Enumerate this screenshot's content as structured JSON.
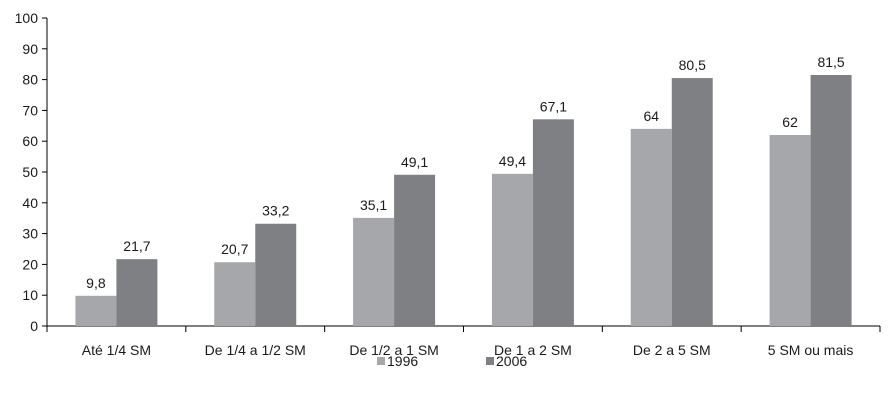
{
  "chart_data": {
    "type": "bar",
    "title": "",
    "xlabel": "",
    "ylabel": "",
    "ylim": [
      0,
      100
    ],
    "yticks": [
      0,
      10,
      20,
      30,
      40,
      50,
      60,
      70,
      80,
      90,
      100
    ],
    "categories": [
      "Até 1/4 SM",
      "De 1/4 a 1/2 SM",
      "De 1/2 a 1 SM",
      "De 1 a 2 SM",
      "De 2 a 5 SM",
      "5 SM ou mais"
    ],
    "series": [
      {
        "name": "1996",
        "color": "#a6a7aa",
        "values": [
          9.8,
          20.7,
          35.1,
          49.4,
          64,
          62
        ],
        "labels": [
          "9,8",
          "20,7",
          "35,1",
          "49,4",
          "64",
          "62"
        ]
      },
      {
        "name": "2006",
        "color": "#7f8083",
        "values": [
          21.7,
          33.2,
          49.1,
          67.1,
          80.5,
          81.5
        ],
        "labels": [
          "21,7",
          "33,2",
          "49,1",
          "67,1",
          "80,5",
          "81,5"
        ]
      }
    ],
    "grid": false,
    "legend_position": "bottom"
  }
}
